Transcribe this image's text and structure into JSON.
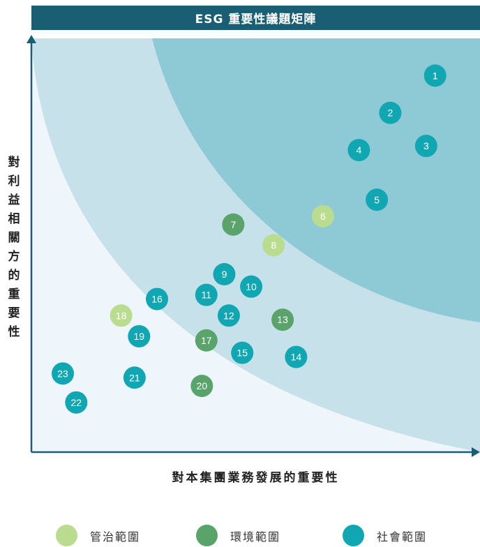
{
  "chart_data": {
    "type": "scatter",
    "title": "ESG 重要性議題矩陣",
    "xlabel": "對本集團業務發展的重要性",
    "ylabel": "對利益相關方的重要性",
    "xlim": [
      0,
      100
    ],
    "ylim": [
      0,
      100
    ],
    "grid": false,
    "legend_position": "bottom",
    "colors": {
      "title_bar": "#1a5e74",
      "zone_low": "#eef6fb",
      "zone_mid": "#c7e1ea",
      "zone_high": "#8ec9d6",
      "axis": "#1a5e74"
    },
    "series": [
      {
        "name": "管治範圍",
        "color": "#b9dc8e",
        "points": [
          {
            "label": "6",
            "x": 65,
            "y": 57
          },
          {
            "label": "8",
            "x": 54,
            "y": 50
          },
          {
            "label": "18",
            "x": 20,
            "y": 33
          }
        ]
      },
      {
        "name": "環境範圍",
        "color": "#5aa36b",
        "points": [
          {
            "label": "7",
            "x": 45,
            "y": 55
          },
          {
            "label": "13",
            "x": 56,
            "y": 32
          },
          {
            "label": "17",
            "x": 39,
            "y": 27
          },
          {
            "label": "20",
            "x": 38,
            "y": 16
          }
        ]
      },
      {
        "name": "社會範圍",
        "color": "#10a7b2",
        "points": [
          {
            "label": "1",
            "x": 90,
            "y": 91
          },
          {
            "label": "2",
            "x": 80,
            "y": 82
          },
          {
            "label": "3",
            "x": 88,
            "y": 74
          },
          {
            "label": "4",
            "x": 73,
            "y": 73
          },
          {
            "label": "5",
            "x": 77,
            "y": 61
          },
          {
            "label": "9",
            "x": 43,
            "y": 43
          },
          {
            "label": "10",
            "x": 49,
            "y": 40
          },
          {
            "label": "11",
            "x": 39,
            "y": 38
          },
          {
            "label": "12",
            "x": 44,
            "y": 33
          },
          {
            "label": "14",
            "x": 59,
            "y": 23
          },
          {
            "label": "15",
            "x": 47,
            "y": 24
          },
          {
            "label": "16",
            "x": 28,
            "y": 37
          },
          {
            "label": "19",
            "x": 24,
            "y": 28
          },
          {
            "label": "21",
            "x": 23,
            "y": 18
          },
          {
            "label": "22",
            "x": 10,
            "y": 12
          },
          {
            "label": "23",
            "x": 7,
            "y": 19
          }
        ]
      }
    ]
  }
}
